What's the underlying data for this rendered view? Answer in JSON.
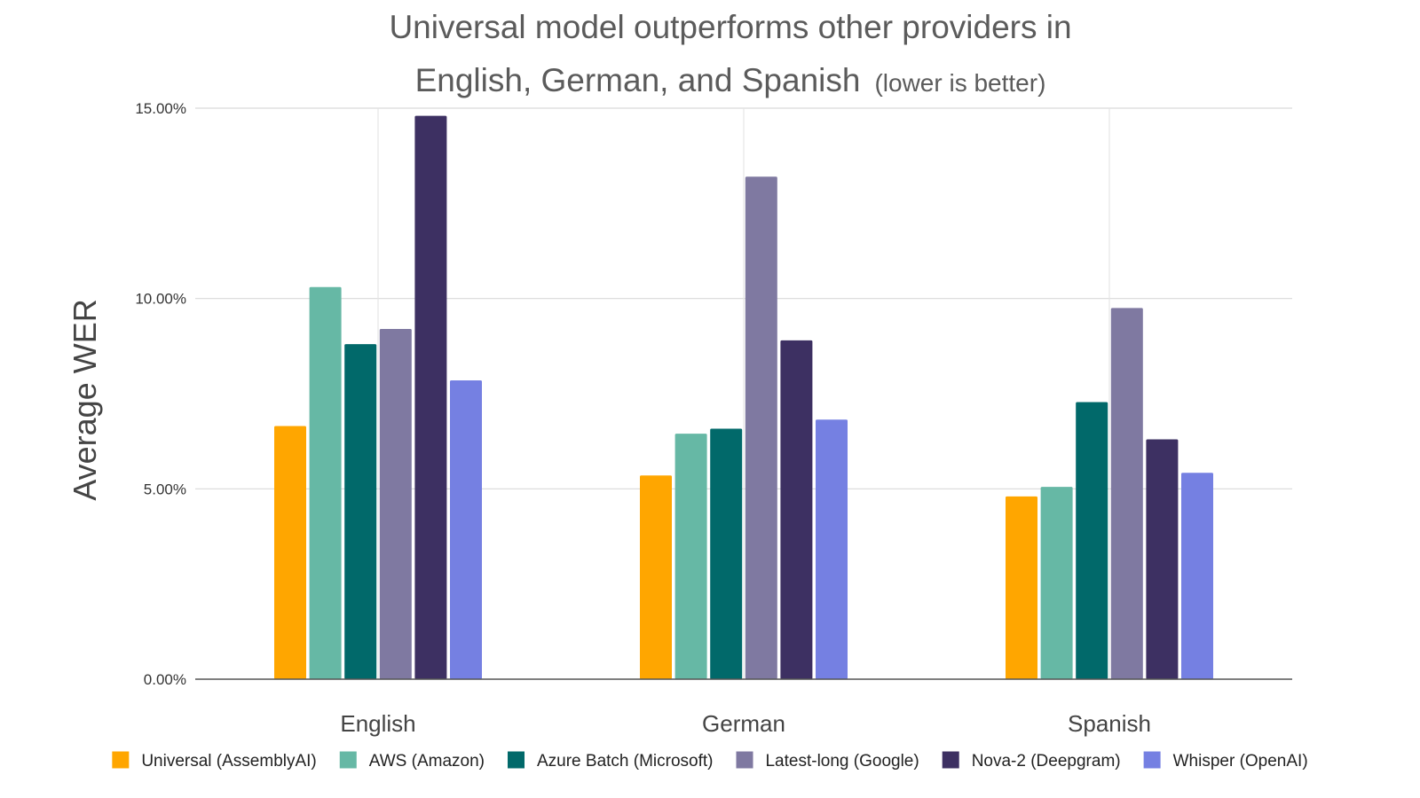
{
  "chart_data": {
    "type": "bar",
    "title_line1": "Universal model outperforms other providers in",
    "title_line2": "English, German, and Spanish",
    "title_note": "(lower is better)",
    "xlabel": "",
    "ylabel": "Average WER",
    "ylim": [
      0,
      15
    ],
    "yticks": [
      "0.00%",
      "5.00%",
      "10.00%",
      "15.00%"
    ],
    "categories": [
      "English",
      "German",
      "Spanish"
    ],
    "grid": true,
    "legend_position": "bottom",
    "series": [
      {
        "name": "Universal (AssemblyAI)",
        "color": "#ffa600",
        "values": [
          6.65,
          5.35,
          4.8
        ]
      },
      {
        "name": "AWS (Amazon)",
        "color": "#66b8a5",
        "values": [
          10.3,
          6.45,
          5.05
        ]
      },
      {
        "name": "Azure Batch (Microsoft)",
        "color": "#01696a",
        "values": [
          8.8,
          6.58,
          7.28
        ]
      },
      {
        "name": "Latest-long (Google)",
        "color": "#7f79a1",
        "values": [
          9.2,
          13.2,
          9.75
        ]
      },
      {
        "name": "Nova-2 (Deepgram)",
        "color": "#3d3062",
        "values": [
          14.8,
          8.9,
          6.3
        ]
      },
      {
        "name": "Whisper (OpenAI)",
        "color": "#7580e2",
        "values": [
          7.85,
          6.82,
          5.42
        ]
      }
    ]
  }
}
